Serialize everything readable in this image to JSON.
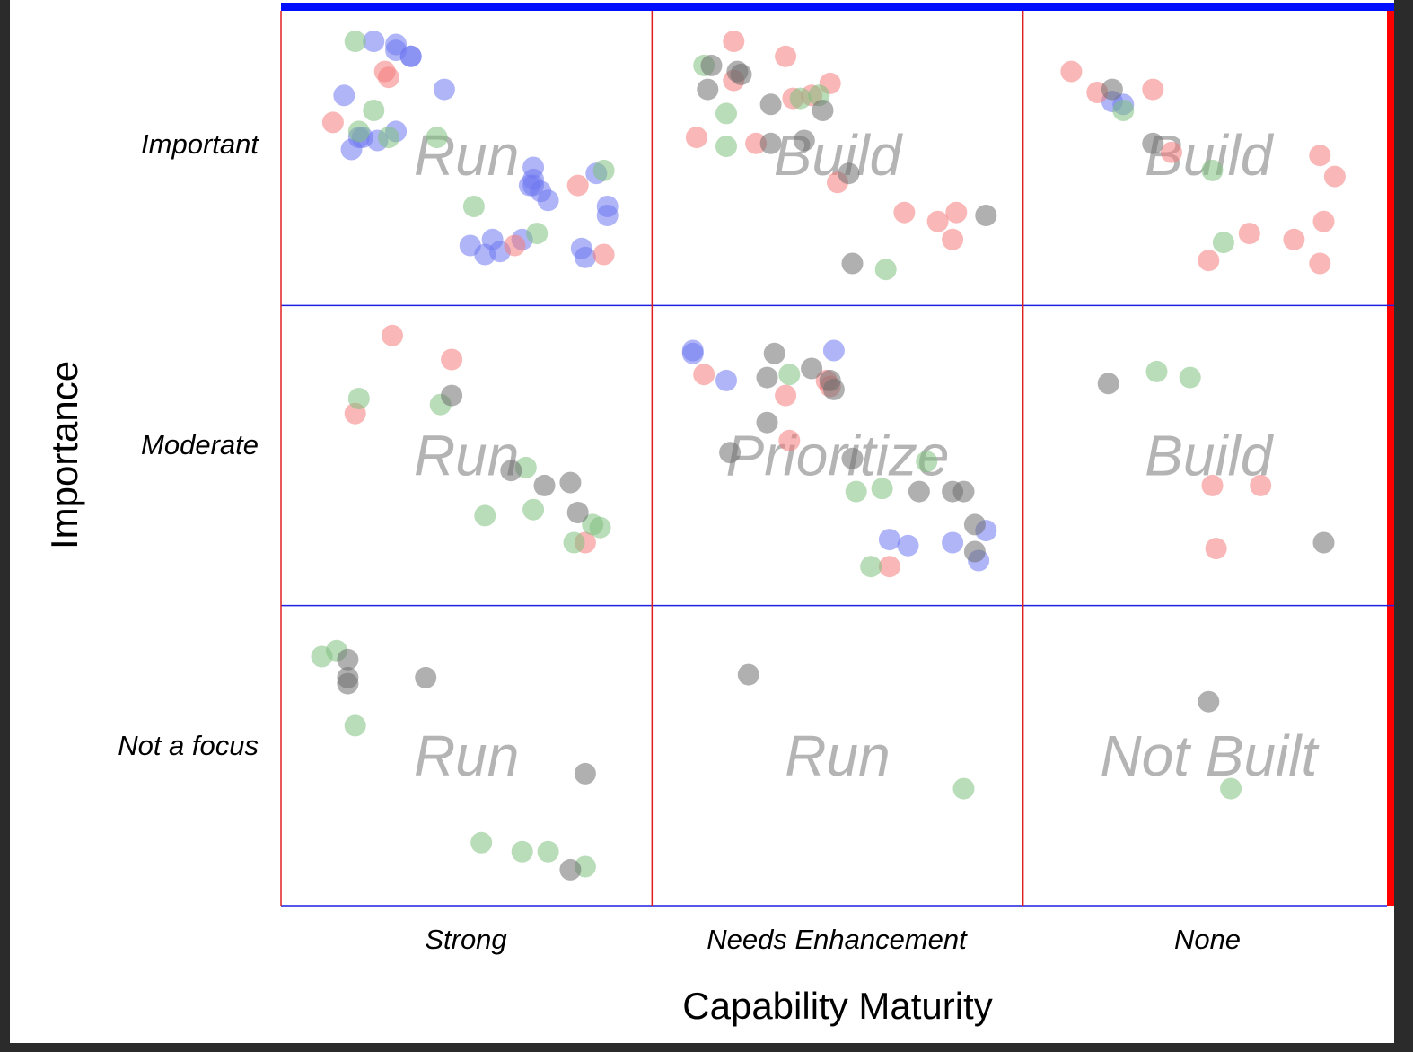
{
  "chart_data": {
    "type": "scatter",
    "xlabel": "Capability Maturity",
    "ylabel": "Importance",
    "x_categories": [
      "Strong",
      "Needs Enhancement",
      "None"
    ],
    "y_categories": [
      "Important",
      "Moderate",
      "Not a focus"
    ],
    "x_range": [
      0,
      3
    ],
    "y_range": [
      0,
      3
    ],
    "cell_labels": [
      [
        "Run",
        "Build",
        "Build"
      ],
      [
        "Run",
        "Prioritize",
        "Build"
      ],
      [
        "Run",
        "Run",
        "Not Built"
      ]
    ],
    "colors": {
      "blue": "#6f78f0",
      "red": "#f47c7c",
      "green": "#7fbf7f",
      "gray": "#707070",
      "h_grid": "#2020e0",
      "v_grid": "#e02020",
      "top_bar": "#0010ff",
      "right_bar": "#ff0000",
      "cell_label": "#b4b4b4"
    },
    "series": [
      {
        "color": "blue",
        "points": [
          [
            0.25,
            2.88
          ],
          [
            0.31,
            2.87
          ],
          [
            0.31,
            2.85
          ],
          [
            0.35,
            2.83
          ],
          [
            0.35,
            2.83
          ],
          [
            0.17,
            2.7
          ],
          [
            0.22,
            2.56
          ],
          [
            0.21,
            2.56
          ],
          [
            0.26,
            2.55
          ],
          [
            0.31,
            2.58
          ],
          [
            0.19,
            2.52
          ],
          [
            0.44,
            2.72
          ],
          [
            0.68,
            2.46
          ],
          [
            0.68,
            2.42
          ],
          [
            0.67,
            2.4
          ],
          [
            0.68,
            2.4
          ],
          [
            0.7,
            2.38
          ],
          [
            0.72,
            2.35
          ],
          [
            0.85,
            2.44
          ],
          [
            0.88,
            2.33
          ],
          [
            0.88,
            2.3
          ],
          [
            0.51,
            2.2
          ],
          [
            0.57,
            2.22
          ],
          [
            0.59,
            2.18
          ],
          [
            0.55,
            2.17
          ],
          [
            0.65,
            2.22
          ],
          [
            0.81,
            2.19
          ],
          [
            0.82,
            2.16
          ],
          [
            1.11,
            1.85
          ],
          [
            1.11,
            1.84
          ],
          [
            1.2,
            1.75
          ],
          [
            1.49,
            1.85
          ],
          [
            1.64,
            1.22
          ],
          [
            1.69,
            1.2
          ],
          [
            1.81,
            1.21
          ],
          [
            1.9,
            1.25
          ],
          [
            1.88,
            1.15
          ],
          [
            2.24,
            2.68
          ],
          [
            2.27,
            2.67
          ]
        ]
      },
      {
        "color": "red",
        "points": [
          [
            0.28,
            2.78
          ],
          [
            0.29,
            2.76
          ],
          [
            0.14,
            2.61
          ],
          [
            0.8,
            2.4
          ],
          [
            0.63,
            2.2
          ],
          [
            0.87,
            2.17
          ],
          [
            1.22,
            2.88
          ],
          [
            1.36,
            2.83
          ],
          [
            1.22,
            2.75
          ],
          [
            1.38,
            2.69
          ],
          [
            1.43,
            2.7
          ],
          [
            1.48,
            2.74
          ],
          [
            1.12,
            2.56
          ],
          [
            1.28,
            2.54
          ],
          [
            1.5,
            2.41
          ],
          [
            1.68,
            2.31
          ],
          [
            1.77,
            2.28
          ],
          [
            1.81,
            2.22
          ],
          [
            1.82,
            2.31
          ],
          [
            2.13,
            2.78
          ],
          [
            2.2,
            2.71
          ],
          [
            2.35,
            2.72
          ],
          [
            2.4,
            2.51
          ],
          [
            2.8,
            2.5
          ],
          [
            2.84,
            2.43
          ],
          [
            2.81,
            2.28
          ],
          [
            2.61,
            2.24
          ],
          [
            2.5,
            2.15
          ],
          [
            2.73,
            2.22
          ],
          [
            2.8,
            2.14
          ],
          [
            0.3,
            1.9
          ],
          [
            0.46,
            1.82
          ],
          [
            0.2,
            1.64
          ],
          [
            1.14,
            1.77
          ],
          [
            1.36,
            1.7
          ],
          [
            1.47,
            1.75
          ],
          [
            1.48,
            1.73
          ],
          [
            1.37,
            1.55
          ],
          [
            2.64,
            1.4
          ],
          [
            2.51,
            1.4
          ],
          [
            1.64,
            1.13
          ],
          [
            2.52,
            1.19
          ],
          [
            0.82,
            1.21
          ]
        ]
      },
      {
        "color": "green",
        "points": [
          [
            0.2,
            2.88
          ],
          [
            0.25,
            2.65
          ],
          [
            0.21,
            2.58
          ],
          [
            0.29,
            2.56
          ],
          [
            0.42,
            2.56
          ],
          [
            0.87,
            2.45
          ],
          [
            0.52,
            2.33
          ],
          [
            0.69,
            2.24
          ],
          [
            1.14,
            2.8
          ],
          [
            1.2,
            2.64
          ],
          [
            1.2,
            2.53
          ],
          [
            1.4,
            2.69
          ],
          [
            1.45,
            2.7
          ],
          [
            1.63,
            2.12
          ],
          [
            2.27,
            2.65
          ],
          [
            2.51,
            2.45
          ],
          [
            2.54,
            2.21
          ],
          [
            0.21,
            1.69
          ],
          [
            0.43,
            1.67
          ],
          [
            0.66,
            1.46
          ],
          [
            0.55,
            1.3
          ],
          [
            0.68,
            1.32
          ],
          [
            0.79,
            1.21
          ],
          [
            0.84,
            1.27
          ],
          [
            0.86,
            1.26
          ],
          [
            1.37,
            1.77
          ],
          [
            1.74,
            1.48
          ],
          [
            1.55,
            1.38
          ],
          [
            1.62,
            1.39
          ],
          [
            1.59,
            1.13
          ],
          [
            2.36,
            1.78
          ],
          [
            2.45,
            1.76
          ],
          [
            0.11,
            0.83
          ],
          [
            0.15,
            0.85
          ],
          [
            0.2,
            0.6
          ],
          [
            0.54,
            0.21
          ],
          [
            0.65,
            0.18
          ],
          [
            0.72,
            0.18
          ],
          [
            0.82,
            0.13
          ],
          [
            1.84,
            0.39
          ],
          [
            2.56,
            0.39
          ]
        ]
      },
      {
        "color": "gray",
        "points": [
          [
            1.16,
            2.8
          ],
          [
            1.23,
            2.78
          ],
          [
            1.24,
            2.77
          ],
          [
            1.15,
            2.72
          ],
          [
            1.32,
            2.67
          ],
          [
            1.46,
            2.65
          ],
          [
            1.32,
            2.54
          ],
          [
            1.41,
            2.55
          ],
          [
            1.53,
            2.44
          ],
          [
            1.9,
            2.3
          ],
          [
            1.54,
            2.14
          ],
          [
            2.24,
            2.72
          ],
          [
            2.35,
            2.54
          ],
          [
            0.46,
            1.7
          ],
          [
            0.62,
            1.45
          ],
          [
            0.78,
            1.41
          ],
          [
            0.8,
            1.31
          ],
          [
            0.71,
            1.4
          ],
          [
            1.33,
            1.84
          ],
          [
            1.43,
            1.79
          ],
          [
            1.31,
            1.76
          ],
          [
            1.48,
            1.75
          ],
          [
            1.49,
            1.72
          ],
          [
            1.31,
            1.61
          ],
          [
            1.21,
            1.51
          ],
          [
            1.54,
            1.49
          ],
          [
            1.72,
            1.38
          ],
          [
            1.81,
            1.38
          ],
          [
            1.84,
            1.38
          ],
          [
            1.87,
            1.27
          ],
          [
            1.87,
            1.18
          ],
          [
            2.23,
            1.74
          ],
          [
            2.81,
            1.21
          ],
          [
            0.18,
            0.82
          ],
          [
            0.18,
            0.76
          ],
          [
            0.18,
            0.74
          ],
          [
            0.39,
            0.76
          ],
          [
            0.82,
            0.44
          ],
          [
            0.78,
            0.12
          ],
          [
            1.26,
            0.77
          ],
          [
            2.5,
            0.68
          ]
        ]
      }
    ]
  }
}
